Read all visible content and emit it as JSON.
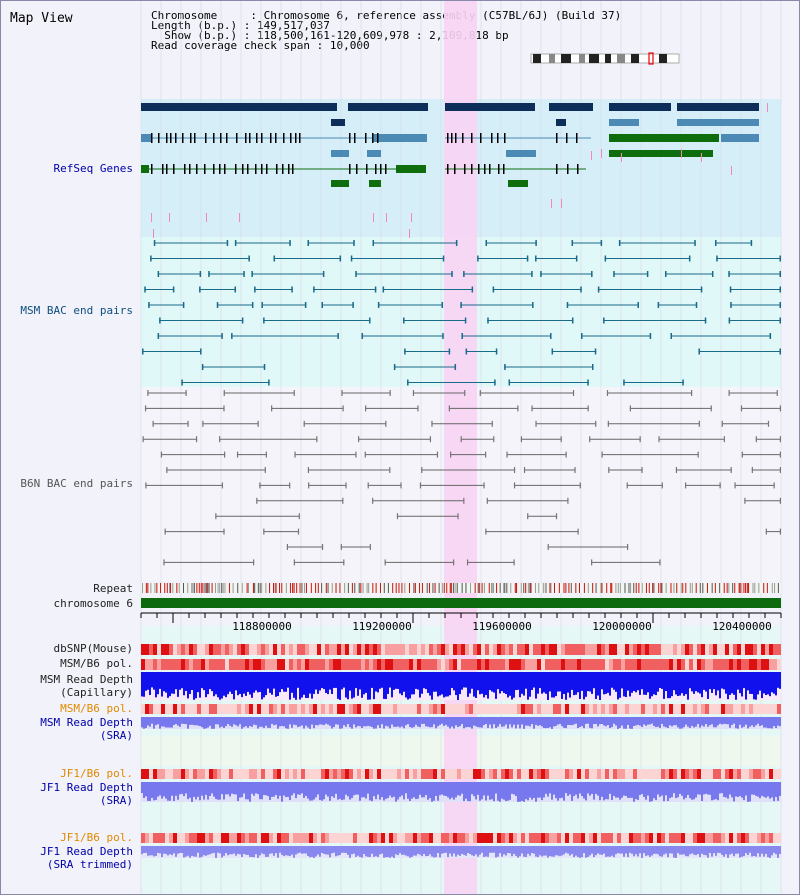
{
  "title": "Map View",
  "info": {
    "chromosome_label": "Chromosome",
    "chromosome_value": "Chromosome 6, reference assembly (C57BL/6J) (Build 37)",
    "length_label": "Length (b.p.)",
    "length_value": "149,517,037",
    "show_label": "Show (b.p.)",
    "show_value": "118,500,161-120,609,978 : 2,109,818 bp",
    "coverage_label": "Read coverage check span",
    "coverage_value": "10,000"
  },
  "tracks": {
    "refseq": "RefSeq Genes",
    "msm_bac": "MSM BAC end pairs",
    "b6n_bac": "B6N BAC end pairs",
    "repeat": "Repeat",
    "chromosome": "chromosome 6",
    "dbsnp": "dbSNP(Mouse)",
    "msm_b6_pol_1": "MSM/B6 pol.",
    "msm_depth_cap_1": "MSM Read Depth",
    "msm_depth_cap_2": "(Capillary)",
    "msm_b6_pol_2": "MSM/B6 pol.",
    "msm_depth_sra_1": "MSM Read Depth",
    "msm_depth_sra_2": "(SRA)",
    "jf1_pol_1": "JF1/B6 pol.",
    "jf1_depth_sra_1": "JF1 Read Depth",
    "jf1_depth_sra_2": "(SRA)",
    "jf1_pol_2": "JF1/B6 pol.",
    "jf1_depth_trim_1": "JF1 Read Depth",
    "jf1_depth_trim_2": "(SRA trimmed)"
  },
  "ruler": {
    "ticks": [
      "118800000",
      "119200000",
      "119600000",
      "120000000",
      "120400000"
    ]
  },
  "colors": {
    "refseq_bg": "#d6eef8",
    "msm_bg": "#e0f8f8",
    "b6n_bg": "#f2f2f8",
    "highlight": "#f8d4f4",
    "navy": "#0e2e5a",
    "steel": "#4a8ab4",
    "green": "#0e6e0e",
    "chrom": "#0e6a0e",
    "msm_line": "#1a6a8a",
    "b6n_line": "#666666",
    "label_black": "#222222",
    "label_blue": "#0000aa",
    "label_teal": "#0e4e7e",
    "label_orange": "#e08a00"
  }
}
